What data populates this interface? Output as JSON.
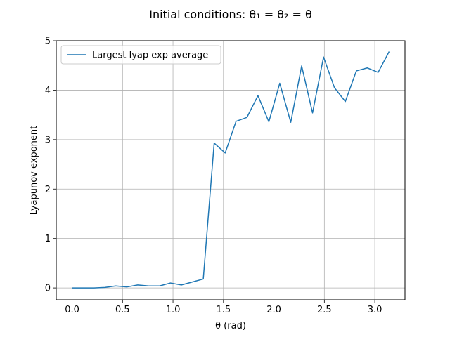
{
  "chart_data": {
    "type": "line",
    "title": "Initial conditions: θ₁ = θ₂ = θ",
    "xlabel": "θ (rad)",
    "ylabel": "Lyapunov exponent",
    "xlim": [
      -0.157,
      3.299
    ],
    "ylim": [
      -0.24,
      5.0
    ],
    "xticks": [
      0.0,
      0.5,
      1.0,
      1.5,
      2.0,
      2.5,
      3.0
    ],
    "xtick_labels": [
      "0.0",
      "0.5",
      "1.0",
      "1.5",
      "2.0",
      "2.5",
      "3.0"
    ],
    "yticks": [
      0,
      1,
      2,
      3,
      4,
      5
    ],
    "ytick_labels": [
      "0",
      "1",
      "2",
      "3",
      "4",
      "5"
    ],
    "grid": true,
    "legend_position": "top-left",
    "series": [
      {
        "name": "Largest lyap exp average",
        "color": "#1f77b4",
        "x": [
          0.0,
          0.108,
          0.217,
          0.325,
          0.433,
          0.542,
          0.65,
          0.758,
          0.867,
          0.975,
          1.083,
          1.192,
          1.3,
          1.408,
          1.517,
          1.625,
          1.733,
          1.842,
          1.95,
          2.058,
          2.167,
          2.275,
          2.383,
          2.492,
          2.6,
          2.708,
          2.817,
          2.925,
          3.033,
          3.142
        ],
        "y": [
          0.0,
          0.0,
          0.0,
          0.01,
          0.04,
          0.02,
          0.06,
          0.04,
          0.04,
          0.1,
          0.06,
          0.12,
          0.18,
          2.93,
          2.73,
          3.37,
          3.45,
          3.89,
          3.36,
          4.14,
          3.35,
          4.49,
          3.54,
          4.67,
          4.05,
          3.77,
          4.39,
          4.45,
          4.36,
          4.78
        ]
      }
    ]
  }
}
